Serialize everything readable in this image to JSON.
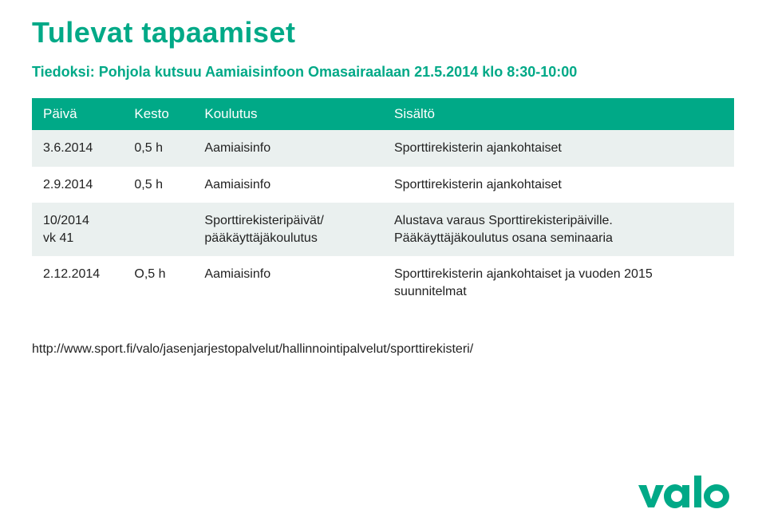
{
  "title": "Tulevat tapaamiset",
  "subtitle": "Tiedoksi: Pohjola kutsuu Aamiaisinfoon Omasairaalaan 21.5.2014 klo 8:30-10:00",
  "table": {
    "headers": [
      "Päivä",
      "Kesto",
      "Koulutus",
      "Sisältö"
    ],
    "rows": [
      [
        "3.6.2014",
        "0,5 h",
        "Aamiaisinfo",
        "Sporttirekisterin ajankohtaiset"
      ],
      [
        "2.9.2014",
        "0,5 h",
        "Aamiaisinfo",
        "Sporttirekisterin ajankohtaiset"
      ],
      [
        "10/2014\nvk 41",
        "",
        "Sporttirekisteripäivät/\npääkäyttäjäkoulutus",
        "Alustava varaus Sporttirekisteripäiville. Pääkäyttäjäkoulutus osana seminaaria"
      ],
      [
        "2.12.2014",
        "O,5 h",
        "Aamiaisinfo",
        "Sporttirekisterin ajankohtaiset ja vuoden 2015 suunnitelmat"
      ]
    ],
    "header_bg": "#00a987",
    "header_fg": "#ffffff",
    "row_bg_even": "#eaf0ef",
    "row_bg_odd": "#ffffff",
    "font_size_header": 17,
    "font_size_cell": 16
  },
  "footer_link": "http://www.sport.fi/valo/jasenjarjestopalvelut/hallinnointipalvelut/sporttirekisteri/",
  "brand": {
    "name": "valo",
    "color": "#00a987"
  }
}
